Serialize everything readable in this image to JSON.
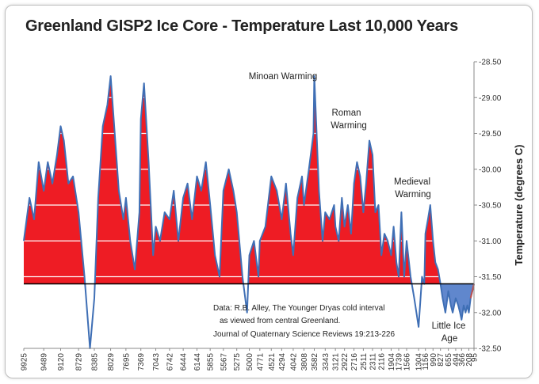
{
  "chart_data": {
    "type": "area",
    "title": "Greenland GISP2 Ice Core - Temperature  Last 10,000 Years",
    "ylabel": "Temperature (degrees C)",
    "xlabel": "",
    "x_direction": "years before present, decreasing left to right",
    "ylim": [
      -32.5,
      -28.5
    ],
    "yticks": [
      "-28.50",
      "-29.00",
      "-29.50",
      "-30.00",
      "-30.50",
      "-31.00",
      "-31.50",
      "-32.00",
      "-32.50"
    ],
    "xticks": [
      "9925",
      "9489",
      "9120",
      "8729",
      "8385",
      "8029",
      "7695",
      "7369",
      "7043",
      "6742",
      "6444",
      "6144",
      "5855",
      "5567",
      "5275",
      "5000",
      "4771",
      "4521",
      "4294",
      "4042",
      "3808",
      "3582",
      "3343",
      "3121",
      "2922",
      "2716",
      "2511",
      "2311",
      "2116",
      "1904",
      "1739",
      "1566",
      "1304",
      "1156",
      "990",
      "827",
      "655",
      "494",
      "366",
      "208",
      "95"
    ],
    "baseline": -31.6,
    "series": [
      {
        "name": "GISP2 Temperature",
        "x": [
          9925,
          9800,
          9700,
          9600,
          9489,
          9400,
          9300,
          9200,
          9120,
          9050,
          8950,
          8850,
          8729,
          8600,
          8480,
          8385,
          8300,
          8200,
          8100,
          8029,
          7950,
          7850,
          7750,
          7695,
          7600,
          7500,
          7400,
          7369,
          7300,
          7200,
          7100,
          7043,
          6950,
          6850,
          6742,
          6650,
          6550,
          6444,
          6350,
          6250,
          6144,
          6050,
          5950,
          5855,
          5750,
          5650,
          5567,
          5450,
          5350,
          5275,
          5150,
          5050,
          5000,
          4900,
          4800,
          4771,
          4650,
          4521,
          4400,
          4294,
          4200,
          4100,
          4042,
          3950,
          3850,
          3808,
          3700,
          3600,
          3582,
          3480,
          3400,
          3343,
          3250,
          3150,
          3121,
          3050,
          2980,
          2922,
          2850,
          2780,
          2716,
          2650,
          2580,
          2511,
          2450,
          2380,
          2311,
          2250,
          2180,
          2116,
          2050,
          1980,
          1904,
          1850,
          1790,
          1739,
          1680,
          1620,
          1566,
          1480,
          1400,
          1304,
          1230,
          1180,
          1156,
          1100,
          1050,
          990,
          940,
          880,
          827,
          780,
          720,
          655,
          600,
          560,
          494,
          440,
          400,
          366,
          320,
          280,
          240,
          208,
          170,
          130,
          95
        ],
        "y": [
          -31.0,
          -30.4,
          -30.7,
          -29.9,
          -30.3,
          -29.9,
          -30.2,
          -29.8,
          -29.4,
          -29.6,
          -30.2,
          -30.1,
          -30.6,
          -31.5,
          -32.5,
          -31.8,
          -30.4,
          -29.4,
          -29.1,
          -28.7,
          -29.4,
          -30.3,
          -30.7,
          -30.4,
          -31.0,
          -31.4,
          -30.6,
          -29.3,
          -28.8,
          -29.9,
          -31.2,
          -30.8,
          -31.0,
          -30.6,
          -30.7,
          -30.3,
          -31.0,
          -30.4,
          -30.2,
          -30.7,
          -30.1,
          -30.3,
          -29.9,
          -30.5,
          -31.2,
          -31.5,
          -30.3,
          -30.0,
          -30.3,
          -30.6,
          -31.5,
          -32.0,
          -31.2,
          -31.0,
          -31.5,
          -31.0,
          -30.8,
          -30.1,
          -30.3,
          -30.7,
          -30.2,
          -30.9,
          -31.2,
          -30.4,
          -30.1,
          -30.5,
          -30.0,
          -29.5,
          -28.7,
          -30.3,
          -31.0,
          -30.6,
          -30.7,
          -30.5,
          -30.8,
          -31.0,
          -30.4,
          -30.8,
          -30.5,
          -30.9,
          -30.2,
          -29.9,
          -30.1,
          -30.6,
          -30.2,
          -29.6,
          -29.8,
          -30.6,
          -30.5,
          -31.2,
          -30.9,
          -31.0,
          -31.2,
          -30.8,
          -31.3,
          -31.5,
          -30.6,
          -31.5,
          -31.0,
          -31.5,
          -31.8,
          -32.2,
          -31.5,
          -31.6,
          -30.9,
          -30.7,
          -30.5,
          -31.0,
          -31.3,
          -31.4,
          -31.6,
          -31.8,
          -32.0,
          -31.7,
          -31.9,
          -32.0,
          -31.8,
          -31.9,
          -32.0,
          -32.1,
          -31.9,
          -32.0,
          -31.9,
          -32.0,
          -31.8,
          -31.7,
          -31.6
        ]
      }
    ],
    "annotations": [
      {
        "label": "Minoan Warming",
        "x": 3343
      },
      {
        "label": "Roman",
        "x": 2116
      },
      {
        "label": "Warming",
        "x": 2116
      },
      {
        "label": "Medieval",
        "x": 990
      },
      {
        "label": "Warming",
        "x": 990
      },
      {
        "label": "Little Ice",
        "x": 400
      },
      {
        "label": "Age",
        "x": 400
      }
    ],
    "source_note": [
      "Data: R.B. Alley,  The Younger Dryas cold interval",
      "as viewed from central Greenland.",
      "Journal of Quaternary  Science Reviews 19:213-226"
    ],
    "colors": {
      "fill_red": "#ee1c24",
      "line": "#3f6fb5",
      "little_ice_age_fill": "#4472c4",
      "recent_red_line": "#c0504d",
      "baseline": "#000000",
      "grid": "#ffffff"
    }
  }
}
